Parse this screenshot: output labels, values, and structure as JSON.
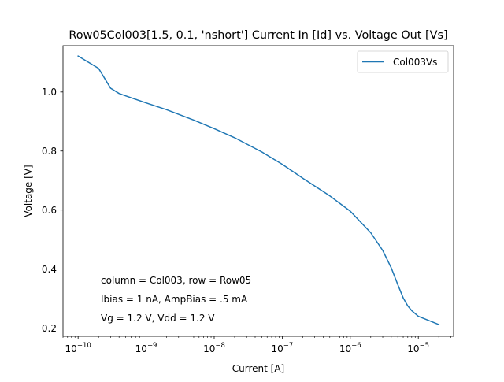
{
  "chart_data": {
    "type": "line",
    "title": "Row05Col003[1.5, 0.1, 'nshort'] Current In [Id] vs. Voltage Out [Vs]",
    "xlabel": "Current [A]",
    "ylabel": "Voltage [V]",
    "xscale": "log",
    "xlim": [
      6e-11,
      3.3e-05
    ],
    "ylim": [
      0.172,
      1.157
    ],
    "x_ticks": [
      {
        "value": 1e-10,
        "base": "10",
        "exp": "−10"
      },
      {
        "value": 1e-09,
        "base": "10",
        "exp": "−9"
      },
      {
        "value": 1e-08,
        "base": "10",
        "exp": "−8"
      },
      {
        "value": 1e-07,
        "base": "10",
        "exp": "−7"
      },
      {
        "value": 1e-06,
        "base": "10",
        "exp": "−6"
      },
      {
        "value": 1e-05,
        "base": "10",
        "exp": "−5"
      }
    ],
    "y_ticks": [
      {
        "value": 0.2,
        "label": "0.2"
      },
      {
        "value": 0.4,
        "label": "0.4"
      },
      {
        "value": 0.6,
        "label": "0.6"
      },
      {
        "value": 0.8,
        "label": "0.8"
      },
      {
        "value": 1.0,
        "label": "1.0"
      }
    ],
    "grid": false,
    "legend_position": "top-right",
    "series": [
      {
        "name": "Col003Vs",
        "color": "#1f77b4",
        "x": [
          1e-10,
          2e-10,
          3e-10,
          4e-10,
          5e-10,
          1e-09,
          2e-09,
          5e-09,
          1e-08,
          2e-08,
          5e-08,
          1e-07,
          2e-07,
          5e-07,
          1e-06,
          2e-06,
          3e-06,
          4e-06,
          5e-06,
          6e-06,
          7e-06,
          8e-06,
          1e-05,
          2e-05
        ],
        "y": [
          1.122,
          1.08,
          1.013,
          0.995,
          0.987,
          0.963,
          0.94,
          0.905,
          0.876,
          0.845,
          0.797,
          0.755,
          0.708,
          0.648,
          0.596,
          0.523,
          0.463,
          0.404,
          0.347,
          0.302,
          0.275,
          0.259,
          0.24,
          0.212
        ]
      }
    ],
    "annotations": [
      "column = Col003, row = Row05",
      "Ibias = 1 nA, AmpBias = .5 mA",
      "Vg = 1.2 V, Vdd = 1.2 V"
    ]
  }
}
